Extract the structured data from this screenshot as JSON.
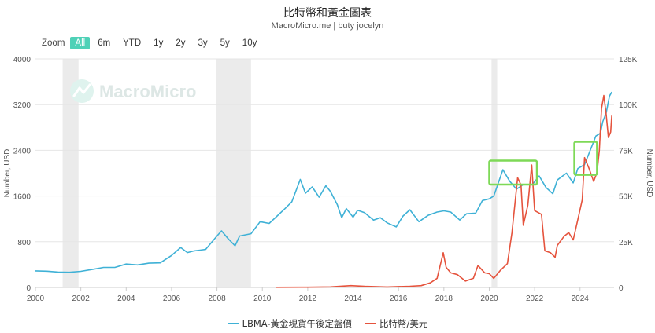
{
  "header": {
    "title": "比特幣和黃金圖表",
    "subtitle": "MacroMicro.me | buty jocelyn"
  },
  "zoom": {
    "label": "Zoom",
    "buttons": [
      {
        "label": "All",
        "active": true
      },
      {
        "label": "6m",
        "active": false
      },
      {
        "label": "YTD",
        "active": false
      },
      {
        "label": "1y",
        "active": false
      },
      {
        "label": "2y",
        "active": false
      },
      {
        "label": "3y",
        "active": false
      },
      {
        "label": "5y",
        "active": false
      },
      {
        "label": "10y",
        "active": false
      }
    ]
  },
  "watermark": "MacroMicro",
  "colors": {
    "gold": "#3fb1d6",
    "btc": "#e5533d",
    "recession": "#ebebeb",
    "highlight": "#7ed957",
    "grid": "#e6e6e6",
    "zoom_active": "#4fd1b7"
  },
  "chart_data": {
    "type": "line",
    "xlabel": "",
    "x_ticks": [
      "2000",
      "2002",
      "2004",
      "2006",
      "2008",
      "2010",
      "2012",
      "2014",
      "2016",
      "2018",
      "2020",
      "2022",
      "2024"
    ],
    "xlim": [
      2000,
      2025.5
    ],
    "y_left": {
      "label": "Number, USD",
      "lim": [
        0,
        4000
      ],
      "ticks": [
        "0",
        "800",
        "1600",
        "2400",
        "3200",
        "4000"
      ]
    },
    "y_right": {
      "label": "Number, USD",
      "lim": [
        0,
        125000
      ],
      "ticks": [
        "0",
        "25K",
        "50K",
        "75K",
        "100K",
        "125K"
      ]
    },
    "shaded_periods": [
      [
        2001.2,
        2001.9
      ],
      [
        2007.95,
        2009.5
      ],
      [
        2020.1,
        2020.35
      ]
    ],
    "highlight_boxes": [
      {
        "x": [
          2020.0,
          2022.1
        ],
        "y_left": [
          1800,
          2220
        ]
      },
      {
        "x": [
          2023.75,
          2024.75
        ],
        "y_left": [
          1970,
          2550
        ]
      }
    ],
    "series": [
      {
        "name": "LBMA-黃金現貨午後定盤價",
        "axis": "left",
        "points": [
          [
            2000.0,
            290
          ],
          [
            2000.5,
            285
          ],
          [
            2001.0,
            270
          ],
          [
            2001.5,
            265
          ],
          [
            2002.0,
            282
          ],
          [
            2002.5,
            315
          ],
          [
            2003.0,
            350
          ],
          [
            2003.5,
            350
          ],
          [
            2004.0,
            410
          ],
          [
            2004.5,
            395
          ],
          [
            2005.0,
            425
          ],
          [
            2005.5,
            430
          ],
          [
            2006.0,
            560
          ],
          [
            2006.4,
            700
          ],
          [
            2006.7,
            610
          ],
          [
            2007.0,
            640
          ],
          [
            2007.5,
            665
          ],
          [
            2008.0,
            900
          ],
          [
            2008.2,
            990
          ],
          [
            2008.5,
            850
          ],
          [
            2008.8,
            730
          ],
          [
            2009.0,
            900
          ],
          [
            2009.5,
            940
          ],
          [
            2009.9,
            1150
          ],
          [
            2010.3,
            1120
          ],
          [
            2010.6,
            1230
          ],
          [
            2011.0,
            1380
          ],
          [
            2011.3,
            1500
          ],
          [
            2011.67,
            1890
          ],
          [
            2011.9,
            1650
          ],
          [
            2012.2,
            1760
          ],
          [
            2012.5,
            1580
          ],
          [
            2012.8,
            1780
          ],
          [
            2013.0,
            1680
          ],
          [
            2013.3,
            1450
          ],
          [
            2013.5,
            1220
          ],
          [
            2013.7,
            1380
          ],
          [
            2014.0,
            1230
          ],
          [
            2014.2,
            1350
          ],
          [
            2014.5,
            1310
          ],
          [
            2014.9,
            1180
          ],
          [
            2015.2,
            1220
          ],
          [
            2015.5,
            1130
          ],
          [
            2015.9,
            1060
          ],
          [
            2016.2,
            1250
          ],
          [
            2016.5,
            1360
          ],
          [
            2016.9,
            1150
          ],
          [
            2017.3,
            1260
          ],
          [
            2017.7,
            1320
          ],
          [
            2018.0,
            1340
          ],
          [
            2018.3,
            1320
          ],
          [
            2018.7,
            1180
          ],
          [
            2019.0,
            1290
          ],
          [
            2019.4,
            1300
          ],
          [
            2019.7,
            1520
          ],
          [
            2020.0,
            1550
          ],
          [
            2020.2,
            1600
          ],
          [
            2020.6,
            2060
          ],
          [
            2020.9,
            1860
          ],
          [
            2021.2,
            1720
          ],
          [
            2021.5,
            1800
          ],
          [
            2021.9,
            1800
          ],
          [
            2022.2,
            1950
          ],
          [
            2022.5,
            1750
          ],
          [
            2022.8,
            1640
          ],
          [
            2023.0,
            1880
          ],
          [
            2023.4,
            2000
          ],
          [
            2023.7,
            1830
          ],
          [
            2023.9,
            2080
          ],
          [
            2024.2,
            2150
          ],
          [
            2024.4,
            2350
          ],
          [
            2024.7,
            2650
          ],
          [
            2024.9,
            2700
          ],
          [
            2025.0,
            2900
          ],
          [
            2025.15,
            3050
          ],
          [
            2025.3,
            3350
          ],
          [
            2025.4,
            3420
          ]
        ]
      },
      {
        "name": "比特幣/美元",
        "axis": "right",
        "points": [
          [
            2010.6,
            100
          ],
          [
            2012.0,
            150
          ],
          [
            2013.0,
            300
          ],
          [
            2013.9,
            1000
          ],
          [
            2014.5,
            600
          ],
          [
            2015.5,
            250
          ],
          [
            2016.5,
            650
          ],
          [
            2017.0,
            1000
          ],
          [
            2017.4,
            2500
          ],
          [
            2017.7,
            5000
          ],
          [
            2017.97,
            19000
          ],
          [
            2018.1,
            11000
          ],
          [
            2018.3,
            8000
          ],
          [
            2018.6,
            7000
          ],
          [
            2018.95,
            3500
          ],
          [
            2019.3,
            5000
          ],
          [
            2019.5,
            12000
          ],
          [
            2019.8,
            8000
          ],
          [
            2020.0,
            7500
          ],
          [
            2020.2,
            5000
          ],
          [
            2020.5,
            9500
          ],
          [
            2020.8,
            13000
          ],
          [
            2021.0,
            30000
          ],
          [
            2021.25,
            60000
          ],
          [
            2021.4,
            56000
          ],
          [
            2021.5,
            34000
          ],
          [
            2021.7,
            45000
          ],
          [
            2021.87,
            67000
          ],
          [
            2022.0,
            42000
          ],
          [
            2022.3,
            40000
          ],
          [
            2022.45,
            20000
          ],
          [
            2022.7,
            19000
          ],
          [
            2022.9,
            16500
          ],
          [
            2023.0,
            23000
          ],
          [
            2023.3,
            28000
          ],
          [
            2023.5,
            30000
          ],
          [
            2023.7,
            26000
          ],
          [
            2023.9,
            37000
          ],
          [
            2024.1,
            48000
          ],
          [
            2024.2,
            71000
          ],
          [
            2024.4,
            65000
          ],
          [
            2024.6,
            58000
          ],
          [
            2024.75,
            63000
          ],
          [
            2024.85,
            75000
          ],
          [
            2024.95,
            98000
          ],
          [
            2025.05,
            105000
          ],
          [
            2025.15,
            95000
          ],
          [
            2025.25,
            82000
          ],
          [
            2025.35,
            85000
          ],
          [
            2025.4,
            94000
          ]
        ]
      }
    ]
  }
}
